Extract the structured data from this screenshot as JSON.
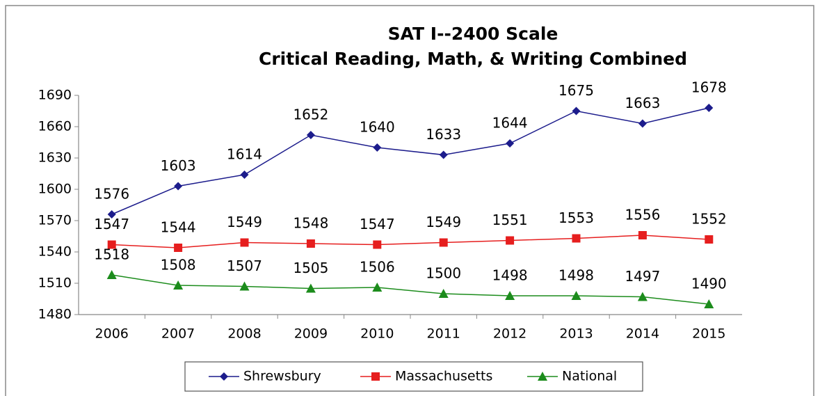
{
  "chart_data": {
    "type": "line",
    "title": [
      "SAT I--2400 Scale",
      "Critical Reading, Math, & Writing Combined"
    ],
    "categories": [
      "2006",
      "2007",
      "2008",
      "2009",
      "2010",
      "2011",
      "2012",
      "2013",
      "2014",
      "2015"
    ],
    "series": [
      {
        "name": "Shrewsbury",
        "color": "#1c1c8c",
        "marker": "diamond",
        "values": [
          1576,
          1603,
          1614,
          1652,
          1640,
          1633,
          1644,
          1675,
          1663,
          1678
        ]
      },
      {
        "name": "Massachusetts",
        "color": "#e61e1e",
        "marker": "square",
        "values": [
          1547,
          1544,
          1549,
          1548,
          1547,
          1549,
          1551,
          1553,
          1556,
          1552
        ]
      },
      {
        "name": "National",
        "color": "#1c8c1c",
        "marker": "triangle",
        "values": [
          1518,
          1508,
          1507,
          1505,
          1506,
          1500,
          1498,
          1498,
          1497,
          1490
        ]
      }
    ],
    "ylim": [
      1480,
      1690
    ],
    "yticks": [
      1480,
      1510,
      1540,
      1570,
      1600,
      1630,
      1660,
      1690
    ],
    "grid": false,
    "legend": "bottom",
    "data_labels": true
  }
}
